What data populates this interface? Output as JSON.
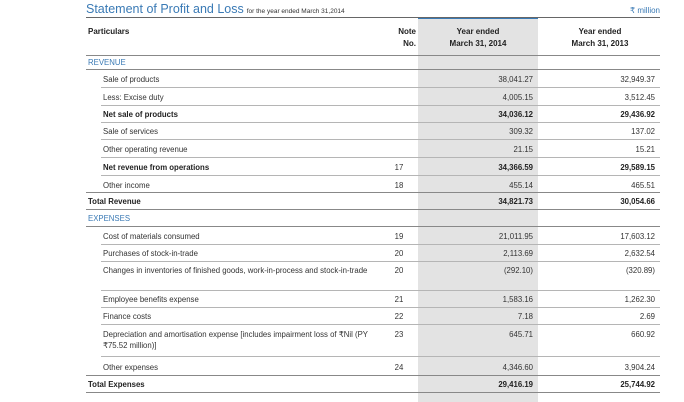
{
  "title": "Statement of Profit and Loss",
  "subtitle": "for the year ended March 31,2014",
  "unit": "₹ million",
  "headers": {
    "particulars": "Particulars",
    "note_line1": "Note",
    "note_line2": "No.",
    "y1_line1": "Year ended",
    "y1_line2": "March 31, 2014",
    "y2_line1": "Year ended",
    "y2_line2": "March 31, 2013"
  },
  "rows": [
    {
      "label": "REVENUE",
      "note": "",
      "v1": "",
      "v2": ""
    },
    {
      "label": "Sale of products",
      "note": "",
      "v1": "38,041.27",
      "v2": "32,949.37"
    },
    {
      "label": "Less: Excise duty",
      "note": "",
      "v1": "4,005.15",
      "v2": "3,512.45"
    },
    {
      "label": "Net sale of products",
      "note": "",
      "v1": "34,036.12",
      "v2": "29,436.92"
    },
    {
      "label": "Sale of services",
      "note": "",
      "v1": "309.32",
      "v2": "137.02"
    },
    {
      "label": "Other operating revenue",
      "note": "",
      "v1": "21.15",
      "v2": "15.21"
    },
    {
      "label": "Net revenue from operations",
      "note": "17",
      "v1": "34,366.59",
      "v2": "29,589.15"
    },
    {
      "label": "Other income",
      "note": "18",
      "v1": "455.14",
      "v2": "465.51"
    },
    {
      "label": "Total Revenue",
      "note": "",
      "v1": "34,821.73",
      "v2": "30,054.66"
    },
    {
      "label": "EXPENSES",
      "note": "",
      "v1": "",
      "v2": ""
    },
    {
      "label": "Cost of materials consumed",
      "note": "19",
      "v1": "21,011.95",
      "v2": "17,603.12"
    },
    {
      "label": "Purchases of stock-in-trade",
      "note": "20",
      "v1": "2,113.69",
      "v2": "2,632.54"
    },
    {
      "label": "Changes in inventories of finished goods, work-in-process and stock-in-trade",
      "note": "20",
      "v1": "(292.10)",
      "v2": "(320.89)"
    },
    {
      "label": "Employee benefits expense",
      "note": "21",
      "v1": "1,583.16",
      "v2": "1,262.30"
    },
    {
      "label": "Finance costs",
      "note": "22",
      "v1": "7.18",
      "v2": "2.69"
    },
    {
      "label": "Depreciation and amortisation expense [includes impairment loss of ₹Nil (PY ₹75.52 million)]",
      "note": "23",
      "v1": "645.71",
      "v2": "660.92"
    },
    {
      "label": "Other expenses",
      "note": "24",
      "v1": "4,346.60",
      "v2": "3,904.24"
    },
    {
      "label": "Total Expenses",
      "note": "",
      "v1": "29,416.19",
      "v2": "25,744.92"
    }
  ]
}
